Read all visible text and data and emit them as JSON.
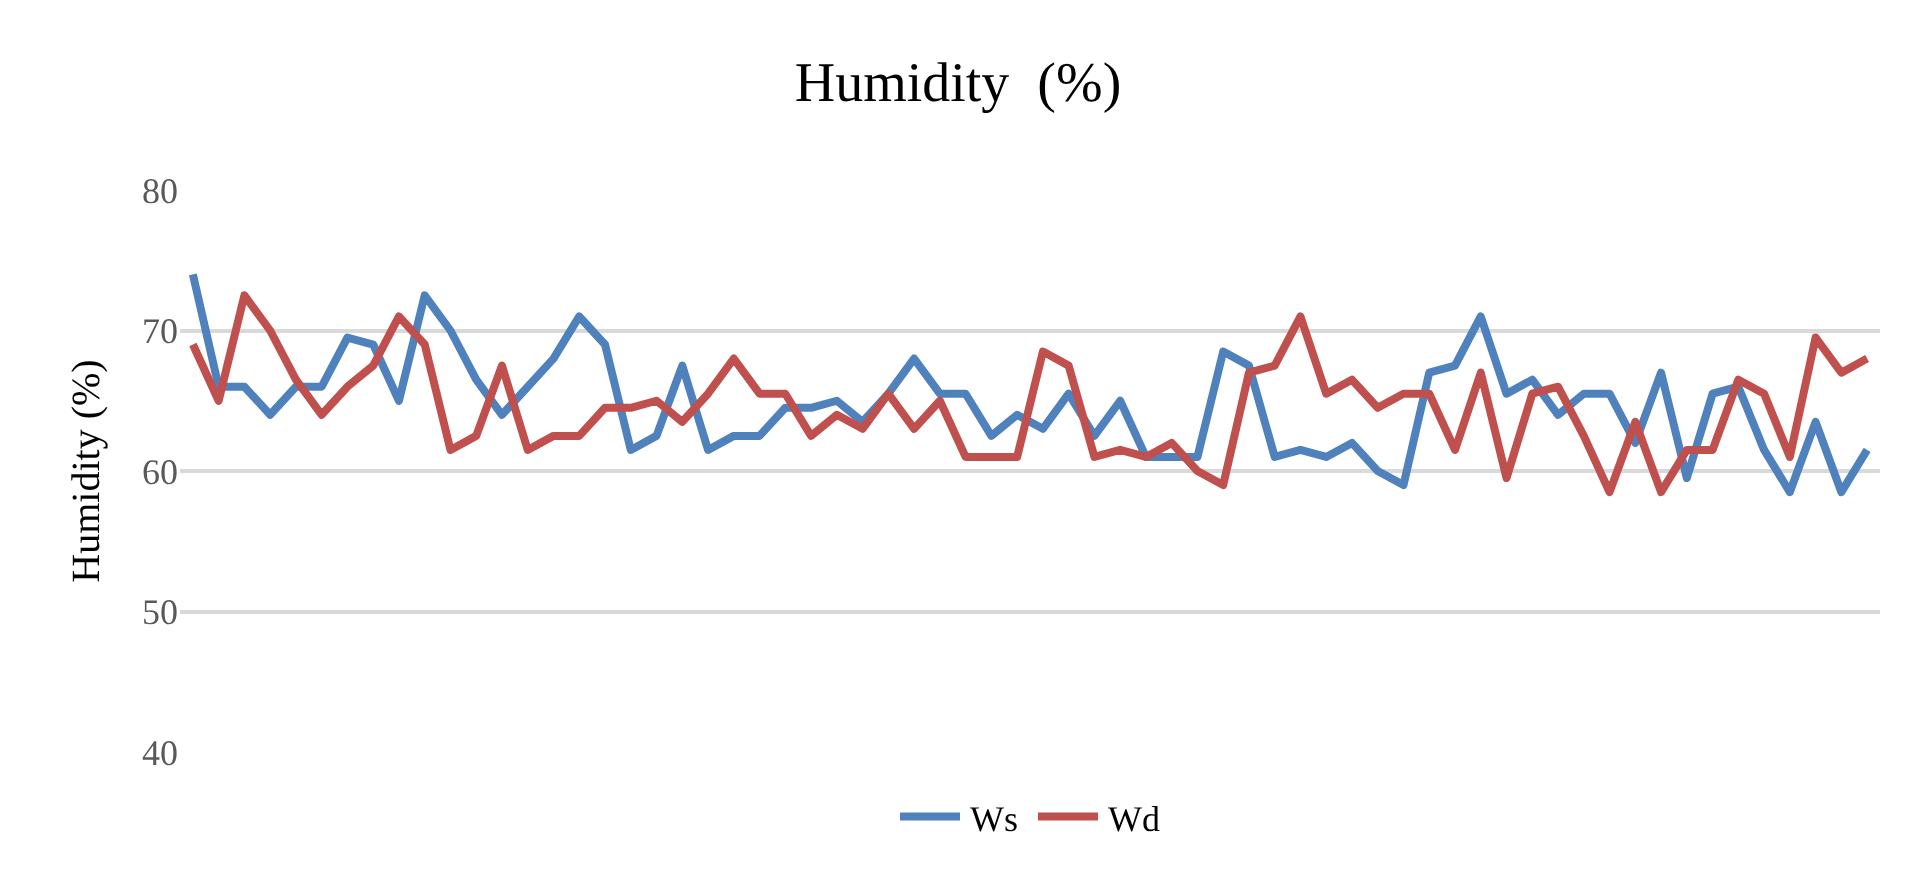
{
  "chart_data": {
    "type": "line",
    "title": "Humidity  (%)",
    "ylabel": "Humidity (%)",
    "categories": [
      null,
      null,
      null,
      null,
      null,
      null,
      null,
      null,
      null,
      null,
      null,
      null,
      null,
      null,
      null,
      null,
      null,
      null,
      null,
      null,
      null,
      null,
      null,
      null,
      null,
      null,
      null,
      null,
      null,
      null,
      null,
      null,
      null,
      null,
      null,
      null,
      null,
      null,
      null,
      null,
      null,
      null,
      null,
      null,
      null,
      null,
      null,
      null,
      null,
      null,
      null,
      null,
      null,
      null,
      null,
      null,
      null,
      null,
      null,
      null,
      null,
      null,
      null,
      null,
      null,
      null
    ],
    "series": [
      {
        "name": "Ws",
        "color": "#4f81bd",
        "values": [
          74,
          66,
          66,
          64,
          66,
          66,
          69.5,
          69,
          65,
          72.5,
          70,
          66.5,
          64,
          66,
          68,
          71,
          69,
          61.5,
          62.5,
          67.5,
          61.5,
          62.5,
          62.5,
          64.5,
          64.5,
          65,
          63.5,
          65.5,
          68,
          65.5,
          65.5,
          62.5,
          64,
          63,
          65.5,
          62.5,
          65,
          61,
          61,
          61,
          68.5,
          67.5,
          61,
          61.5,
          61,
          62,
          60,
          59,
          67,
          67.5,
          71,
          65.5,
          66.5,
          64,
          65.5,
          65.5,
          62,
          67,
          59.5,
          65.5,
          66,
          61.5,
          58.5,
          63.5,
          58.5,
          61.5
        ]
      },
      {
        "name": "Wd",
        "color": "#c0504d",
        "values": [
          69,
          65,
          72.5,
          70,
          66.5,
          64,
          66,
          67.5,
          71,
          69,
          61.5,
          62.5,
          67.5,
          61.5,
          62.5,
          62.5,
          64.5,
          64.5,
          65,
          63.5,
          65.5,
          68,
          65.5,
          65.5,
          62.5,
          64,
          63,
          65.5,
          63,
          65,
          61,
          61,
          61,
          68.5,
          67.5,
          61,
          61.5,
          61,
          62,
          60,
          59,
          67,
          67.5,
          71,
          65.5,
          66.5,
          64.5,
          65.5,
          65.5,
          61.5,
          67,
          59.5,
          65.5,
          66,
          62.5,
          58.5,
          63.5,
          58.5,
          61.5,
          61.5,
          66.5,
          65.5,
          61,
          69.5,
          67,
          68
        ]
      }
    ],
    "ylim": [
      40,
      80
    ],
    "yticks": [
      40,
      50,
      60,
      70,
      80
    ],
    "grid": "y",
    "legend": "bottom",
    "marker": "none",
    "line_style": "solid"
  }
}
